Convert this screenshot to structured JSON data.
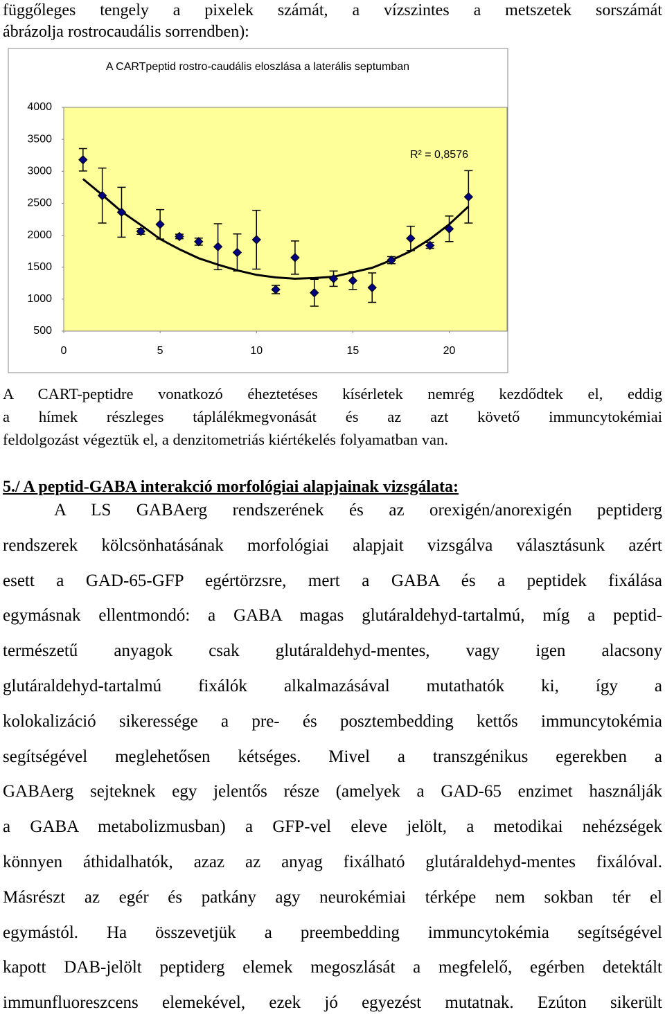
{
  "intro_lines": [
    "függőleges tengely a pixelek számát, a vízszintes a metszetek sorszámát",
    "ábrázolja rostrocaudális sorrendben):"
  ],
  "chart_data": {
    "type": "scatter",
    "title": "A CARTpeptid rostro-caudális eloszlása a laterális septumban",
    "x": [
      1,
      2,
      3,
      4,
      5,
      6,
      7,
      8,
      9,
      10,
      11,
      12,
      13,
      14,
      15,
      16,
      17,
      18,
      19,
      20,
      21
    ],
    "values": [
      3180,
      2620,
      2360,
      2060,
      2170,
      1980,
      1900,
      1820,
      1730,
      1930,
      1150,
      1650,
      1100,
      1320,
      1290,
      1180,
      1610,
      1950,
      1840,
      2100,
      2600
    ],
    "errors": [
      175,
      430,
      390,
      45,
      230,
      35,
      55,
      360,
      290,
      460,
      65,
      260,
      210,
      120,
      140,
      230,
      55,
      190,
      45,
      200,
      410
    ],
    "trendline": {
      "values": [
        2880,
        2630,
        2370,
        2160,
        1940,
        1780,
        1640,
        1540,
        1450,
        1380,
        1340,
        1320,
        1330,
        1350,
        1420,
        1490,
        1610,
        1750,
        1940,
        2170,
        2450
      ],
      "color": "#000000"
    },
    "color": "#000080",
    "plot_background": "#ffff99",
    "annotation": "R² = 0,8576",
    "xlim": [
      0,
      23
    ],
    "ylim": [
      500,
      4000
    ],
    "xticks": [
      0,
      5,
      10,
      15,
      20
    ],
    "yticks": [
      500,
      1000,
      1500,
      2000,
      2500,
      3000,
      3500,
      4000
    ],
    "grid": false
  },
  "paragraph_1": [
    "A CART-peptidre vonatkozó éheztetéses kísérletek nemrég kezdődtek el, eddig",
    "a hímek részleges táplálékmegvonását és az azt követő immuncytokémiai",
    "feldolgozást végeztük el, a denzitometriás kiértékelés folyamatban van."
  ],
  "heading": "5./ A peptid-GABA interakció morfológiai alapjainak vizsgálata:",
  "paragraph_2": [
    "A LS GABAerg rendszerének és az orexigén/anorexigén peptiderg",
    "rendszerek kölcsönhatásának morfológiai alapjait vizsgálva választásunk azért",
    "esett a GAD-65-GFP egértörzsre, mert a GABA és a peptidek fixálása",
    "egymásnak ellentmondó: a GABA magas glutáraldehyd-tartalmú, míg a peptid-",
    "természetű anyagok csak glutáraldehyd-mentes, vagy igen alacsony",
    "glutáraldehyd-tartalmú fixálók alkalmazásával mutathatók ki, így a",
    "kolokalizáció sikeressége a pre- és posztembedding kettős immuncytokémia",
    "segítségével meglehetősen kétséges. Mivel a transzgénikus egerekben a",
    "GABAerg sejteknek egy jelentős része (amelyek a GAD-65 enzimet használják",
    "a GABA metabolizmusban) a GFP-vel eleve jelölt, a metodikai nehézségek",
    "könnyen áthidalhatók, azaz az anyag fixálható glutáraldehyd-mentes fixálóval.",
    "Másrészt az egér és patkány agy neurokémiai térképe nem sokban tér el",
    "egymástól. Ha összevetjük a preembedding immuncytokémia segítségével",
    "kapott DAB-jelölt peptiderg elemek megoszlását a megfelelő, egérben detektált",
    "immunfluoreszcens elemekével, ezek jó egyezést mutatnak. Ezúton sikerült"
  ]
}
